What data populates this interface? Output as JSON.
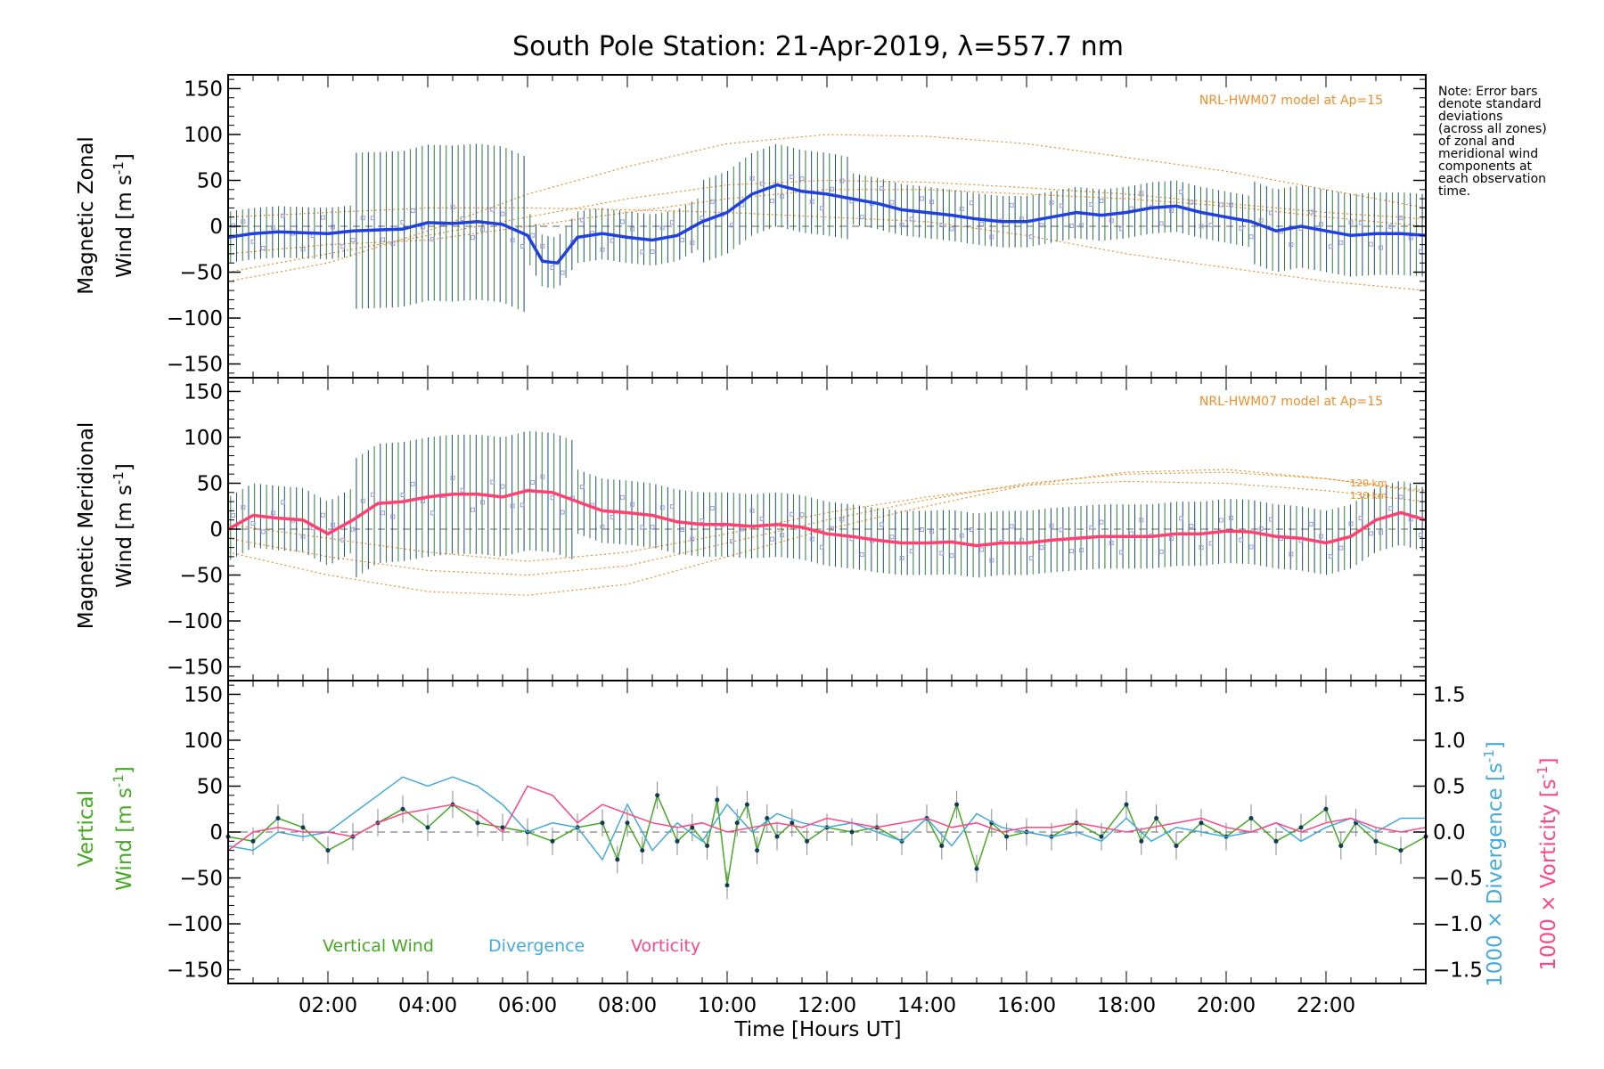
{
  "chart_data": [
    {
      "type": "line",
      "panel": "zonal",
      "title": "South Pole Station: 21-Apr-2019, λ=557.7 nm",
      "ylabel_line1": "Magnetic Zonal",
      "ylabel_line2": "Wind [m s",
      "ylabel_sup": "-1",
      "ylabel_close": "]",
      "ylim": [
        -165,
        165
      ],
      "xlim": [
        0,
        24
      ],
      "yticks": [
        150,
        100,
        50,
        0,
        -50,
        -100,
        -150
      ],
      "yticklabels": [
        "150",
        "100",
        "50",
        "0",
        "−50",
        "−100",
        "−150"
      ],
      "annotation": "NRL-HWM07 model at Ap=15",
      "series": [
        {
          "name": "Mean zonal wind",
          "color": "#2040e0",
          "x": [
            0,
            0.5,
            1,
            1.5,
            2,
            2.5,
            3,
            3.5,
            4,
            4.5,
            5,
            5.5,
            6,
            6.3,
            6.6,
            7,
            7.5,
            8,
            8.5,
            9,
            9.5,
            10,
            10.5,
            11,
            11.5,
            12,
            12.5,
            13,
            13.5,
            14,
            14.5,
            15,
            15.5,
            16,
            16.5,
            17,
            17.5,
            18,
            18.5,
            19,
            19.5,
            20,
            20.5,
            21,
            21.5,
            22,
            22.5,
            23,
            23.5,
            24
          ],
          "values": [
            -12,
            -8,
            -6,
            -7,
            -8,
            -5,
            -4,
            -3,
            4,
            3,
            5,
            2,
            -10,
            -38,
            -40,
            -12,
            -8,
            -12,
            -15,
            -10,
            5,
            15,
            35,
            45,
            38,
            35,
            30,
            25,
            18,
            15,
            12,
            8,
            5,
            5,
            10,
            15,
            12,
            15,
            20,
            22,
            15,
            10,
            5,
            -5,
            0,
            -5,
            -10,
            -8,
            -8,
            -10
          ]
        }
      ],
      "model_curves": [
        {
          "x": [
            0,
            2,
            4,
            6,
            8,
            10,
            12,
            14,
            16,
            18,
            20,
            22,
            24
          ],
          "values": [
            -60,
            -40,
            -5,
            35,
            65,
            90,
            100,
            98,
            90,
            75,
            60,
            40,
            20
          ]
        },
        {
          "x": [
            0,
            2,
            4,
            6,
            8,
            10,
            12,
            14,
            16,
            18,
            20,
            22,
            24
          ],
          "values": [
            -50,
            -30,
            -10,
            10,
            30,
            45,
            50,
            48,
            42,
            35,
            25,
            15,
            8
          ]
        },
        {
          "x": [
            0,
            2,
            4,
            6,
            8,
            10,
            12,
            14,
            16,
            18,
            20,
            22,
            24
          ],
          "values": [
            -30,
            -20,
            -15,
            0,
            15,
            30,
            40,
            40,
            35,
            30,
            22,
            10,
            0
          ]
        },
        {
          "x": [
            0,
            2,
            4,
            6,
            8,
            10,
            12,
            14,
            16,
            18,
            20,
            22,
            24
          ],
          "values": [
            10,
            15,
            20,
            20,
            18,
            15,
            10,
            5,
            -10,
            -30,
            -45,
            -60,
            -70
          ]
        }
      ]
    },
    {
      "type": "line",
      "panel": "meridional",
      "ylabel_line1": "Magnetic Meridional",
      "ylabel_line2": "Wind [m s",
      "ylabel_sup": "-1",
      "ylabel_close": "]",
      "ylim": [
        -165,
        165
      ],
      "xlim": [
        0,
        24
      ],
      "yticks": [
        150,
        100,
        50,
        0,
        -50,
        -100,
        -150
      ],
      "yticklabels": [
        "150",
        "100",
        "50",
        "0",
        "−50",
        "−100",
        "−150"
      ],
      "annotation": "NRL-HWM07 model at Ap=15",
      "model_labels": [
        "120 km",
        "130 km"
      ],
      "series": [
        {
          "name": "Mean meridional wind",
          "color": "#ff4070",
          "x": [
            0,
            0.5,
            1,
            1.5,
            2,
            2.5,
            3,
            3.5,
            4,
            4.5,
            5,
            5.5,
            6,
            6.5,
            7,
            7.5,
            8,
            8.5,
            9,
            9.5,
            10,
            10.5,
            11,
            11.5,
            12,
            12.5,
            13,
            13.5,
            14,
            14.5,
            15,
            15.5,
            16,
            16.5,
            17,
            17.5,
            18,
            18.5,
            19,
            19.5,
            20,
            20.5,
            21,
            21.5,
            22,
            22.5,
            23,
            23.5,
            24
          ],
          "values": [
            0,
            15,
            12,
            10,
            -5,
            10,
            28,
            30,
            35,
            38,
            38,
            35,
            42,
            40,
            30,
            20,
            18,
            15,
            8,
            5,
            5,
            3,
            5,
            2,
            -5,
            -8,
            -12,
            -15,
            -15,
            -14,
            -18,
            -15,
            -15,
            -12,
            -10,
            -8,
            -8,
            -8,
            -5,
            -5,
            -2,
            -3,
            -8,
            -10,
            -15,
            -8,
            10,
            18,
            10
          ]
        }
      ],
      "model_curves": [
        {
          "x": [
            0,
            2,
            4,
            6,
            8,
            10,
            12,
            14,
            16,
            18,
            20,
            22,
            24
          ],
          "values": [
            -25,
            -50,
            -68,
            -72,
            -60,
            -30,
            0,
            25,
            48,
            62,
            65,
            55,
            40
          ]
        },
        {
          "x": [
            0,
            2,
            4,
            6,
            8,
            10,
            12,
            14,
            16,
            18,
            20,
            22,
            24
          ],
          "values": [
            -10,
            -30,
            -45,
            -50,
            -40,
            -15,
            10,
            32,
            50,
            60,
            62,
            55,
            42
          ]
        },
        {
          "x": [
            0,
            2,
            4,
            6,
            8,
            10,
            12,
            14,
            16,
            18,
            20,
            22,
            24
          ],
          "values": [
            5,
            -10,
            -25,
            -35,
            -25,
            -5,
            18,
            35,
            48,
            52,
            50,
            42,
            30
          ]
        }
      ]
    },
    {
      "type": "line",
      "panel": "vertical",
      "ylabel_line1": "Vertical",
      "ylabel_line2": "Wind [m s",
      "ylabel_sup": "-1",
      "ylabel_close": "]",
      "ylim": [
        -165,
        165
      ],
      "xlim": [
        0,
        24
      ],
      "yticks": [
        150,
        100,
        50,
        0,
        -50,
        -100,
        -150
      ],
      "yticklabels": [
        "150",
        "100",
        "50",
        "0",
        "−50",
        "−100",
        "−150"
      ],
      "y2lim": [
        -1.65,
        1.65
      ],
      "y2ticks": [
        1.5,
        1.0,
        0.5,
        0.0,
        -0.5,
        -1.0,
        -1.5
      ],
      "y2ticklabels": [
        "1.5",
        "1.0",
        "0.5",
        "0.0",
        "−0.5",
        "−1.0",
        "−1.5"
      ],
      "y2label_div": "1000 × Divergence [s",
      "y2label_vor": "1000 × Vorticity [s",
      "y2label_sup": "-1",
      "y2label_close": "]",
      "xticks": [
        2,
        4,
        6,
        8,
        10,
        12,
        14,
        16,
        18,
        20,
        22
      ],
      "xticklabels": [
        "02:00",
        "04:00",
        "06:00",
        "08:00",
        "10:00",
        "12:00",
        "14:00",
        "16:00",
        "18:00",
        "20:00",
        "22:00"
      ],
      "xlabel": "Time [Hours UT]",
      "legend": [
        {
          "name": "Vertical Wind",
          "color": "#44aa22"
        },
        {
          "name": "Divergence",
          "color": "#44aadd"
        },
        {
          "name": "Vorticity",
          "color": "#ff4488"
        }
      ],
      "series": [
        {
          "name": "Vertical Wind",
          "color": "#44aa22",
          "x": [
            0,
            0.5,
            1,
            1.5,
            2,
            2.5,
            3,
            3.5,
            4,
            4.5,
            5,
            5.5,
            6,
            6.5,
            7,
            7.5,
            7.8,
            8,
            8.3,
            8.6,
            9,
            9.3,
            9.6,
            9.8,
            10,
            10.2,
            10.4,
            10.6,
            10.8,
            11,
            11.3,
            11.6,
            12,
            12.5,
            13,
            13.5,
            14,
            14.3,
            14.6,
            15,
            15.3,
            15.6,
            16,
            16.5,
            17,
            17.5,
            18,
            18.3,
            18.6,
            19,
            19.5,
            20,
            20.5,
            21,
            21.5,
            22,
            22.3,
            22.6,
            23,
            23.5,
            24
          ],
          "values": [
            -5,
            -10,
            15,
            5,
            -20,
            -5,
            10,
            25,
            5,
            30,
            10,
            5,
            0,
            -10,
            5,
            10,
            -30,
            10,
            -20,
            40,
            -10,
            5,
            -15,
            35,
            -58,
            10,
            30,
            -20,
            15,
            -5,
            10,
            -10,
            5,
            0,
            5,
            -10,
            15,
            -15,
            30,
            -40,
            10,
            -5,
            0,
            -5,
            10,
            -5,
            30,
            -10,
            15,
            -15,
            10,
            -5,
            15,
            -10,
            5,
            25,
            -15,
            10,
            -10,
            -20,
            -5
          ]
        },
        {
          "name": "Divergence",
          "color": "#44aadd",
          "x": [
            0,
            0.5,
            1,
            1.5,
            2,
            2.5,
            3,
            3.5,
            4,
            4.5,
            5,
            5.5,
            6,
            6.5,
            7,
            7.5,
            8,
            8.5,
            9,
            9.5,
            10,
            10.5,
            11,
            11.5,
            12,
            12.5,
            13,
            13.5,
            14,
            14.5,
            15,
            15.5,
            16,
            16.5,
            17,
            17.5,
            18,
            18.5,
            19,
            19.5,
            20,
            20.5,
            21,
            21.5,
            22,
            22.5,
            23,
            23.5,
            24
          ],
          "values": [
            -0.15,
            -0.2,
            0.0,
            -0.05,
            0.0,
            0.2,
            0.4,
            0.6,
            0.5,
            0.6,
            0.5,
            0.3,
            0.0,
            0.1,
            0.05,
            -0.3,
            0.3,
            -0.2,
            0.1,
            -0.1,
            0.3,
            0.0,
            0.2,
            0.1,
            0.05,
            0.1,
            0.0,
            -0.1,
            0.15,
            -0.15,
            0.2,
            0.05,
            0.0,
            -0.05,
            0.0,
            -0.1,
            0.15,
            -0.1,
            0.05,
            0.0,
            -0.05,
            0.0,
            0.1,
            -0.1,
            0.05,
            0.15,
            0.0,
            0.15,
            0.15
          ]
        },
        {
          "name": "Vorticity",
          "color": "#ff4488",
          "x": [
            0,
            0.5,
            1,
            1.5,
            2,
            2.5,
            3,
            3.5,
            4,
            4.5,
            5,
            5.5,
            6,
            6.5,
            7,
            7.5,
            8,
            8.5,
            9,
            9.5,
            10,
            10.5,
            11,
            11.5,
            12,
            12.5,
            13,
            13.5,
            14,
            14.5,
            15,
            15.5,
            16,
            16.5,
            17,
            17.5,
            18,
            18.5,
            19,
            19.5,
            20,
            20.5,
            21,
            21.5,
            22,
            22.5,
            23,
            23.5,
            24
          ],
          "values": [
            -0.2,
            0.0,
            0.05,
            0.0,
            0.0,
            -0.05,
            0.1,
            0.2,
            0.25,
            0.3,
            0.2,
            0.0,
            0.5,
            0.4,
            0.1,
            0.3,
            0.2,
            0.1,
            0.05,
            0.1,
            0.0,
            0.05,
            0.1,
            0.05,
            0.15,
            0.1,
            0.05,
            0.1,
            0.15,
            0.05,
            0.1,
            0.0,
            0.05,
            0.05,
            0.1,
            0.05,
            0.0,
            0.05,
            0.1,
            0.15,
            0.05,
            0.0,
            0.1,
            0.0,
            0.1,
            0.15,
            0.05,
            0.0,
            0.05
          ]
        }
      ]
    }
  ],
  "note": [
    "Note: Error bars",
    "denote standard",
    "deviations",
    "(across all zones)",
    "of zonal and",
    "meridional wind",
    "components at",
    "each observation",
    "time."
  ]
}
